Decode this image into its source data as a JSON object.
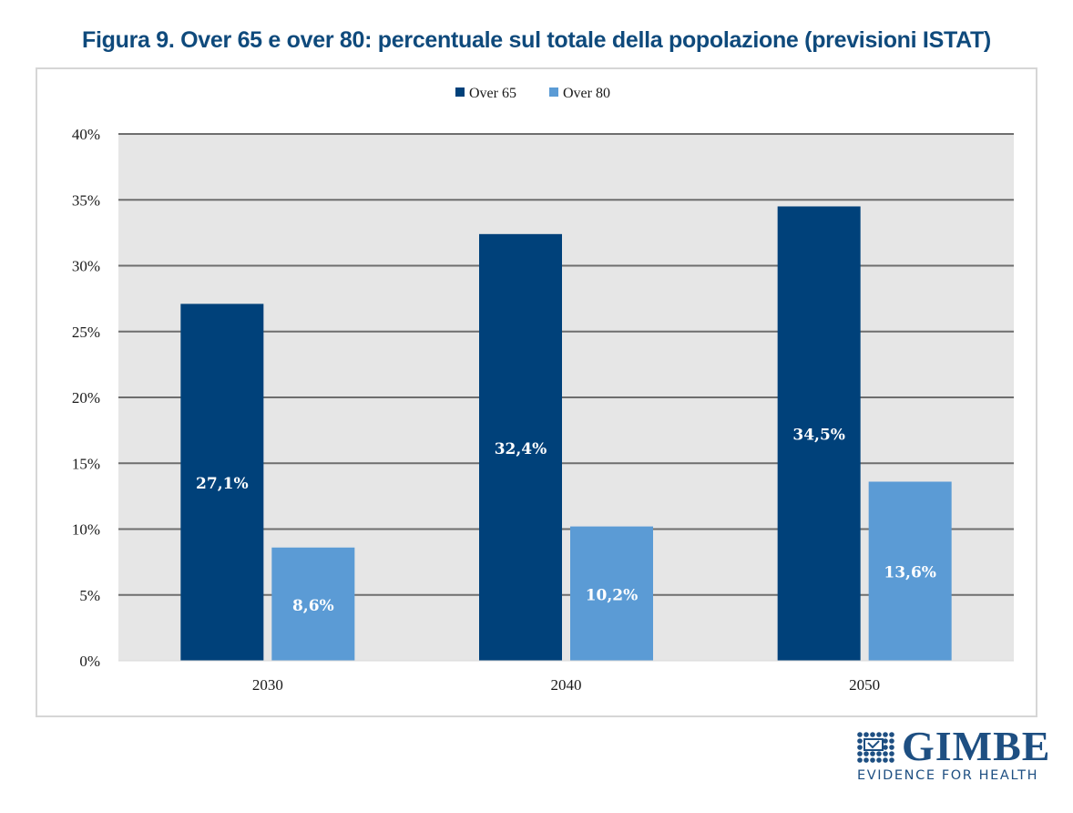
{
  "chart_data": {
    "type": "bar",
    "title": "Figura 9. Over 65 e over 80: percentuale sul totale della popolazione (previsioni ISTAT)",
    "xlabel": "",
    "ylabel": "",
    "categories": [
      "2030",
      "2040",
      "2050"
    ],
    "series": [
      {
        "name": "Over 65",
        "color": "#00417a",
        "values": [
          27.1,
          32.4,
          34.5
        ],
        "labels": [
          "27,1%",
          "32,4%",
          "34,5%"
        ]
      },
      {
        "name": "Over 80",
        "color": "#5b9bd5",
        "values": [
          8.6,
          10.2,
          13.6
        ],
        "labels": [
          "8,6%",
          "10,2%",
          "13,6%"
        ]
      }
    ],
    "ylim": [
      0,
      40
    ],
    "yticks": [
      0,
      5,
      10,
      15,
      20,
      25,
      30,
      35,
      40
    ],
    "ytick_labels": [
      "0%",
      "5%",
      "10%",
      "15%",
      "20%",
      "25%",
      "30%",
      "35%",
      "40%"
    ],
    "grid": true,
    "legend_position": "top-center",
    "plot_background": "#e6e6e6",
    "gridline_color": "#6e6e6e"
  },
  "logo": {
    "name": "GIMBE",
    "tagline": "EVIDENCE FOR HEALTH",
    "color": "#1e4f82"
  }
}
